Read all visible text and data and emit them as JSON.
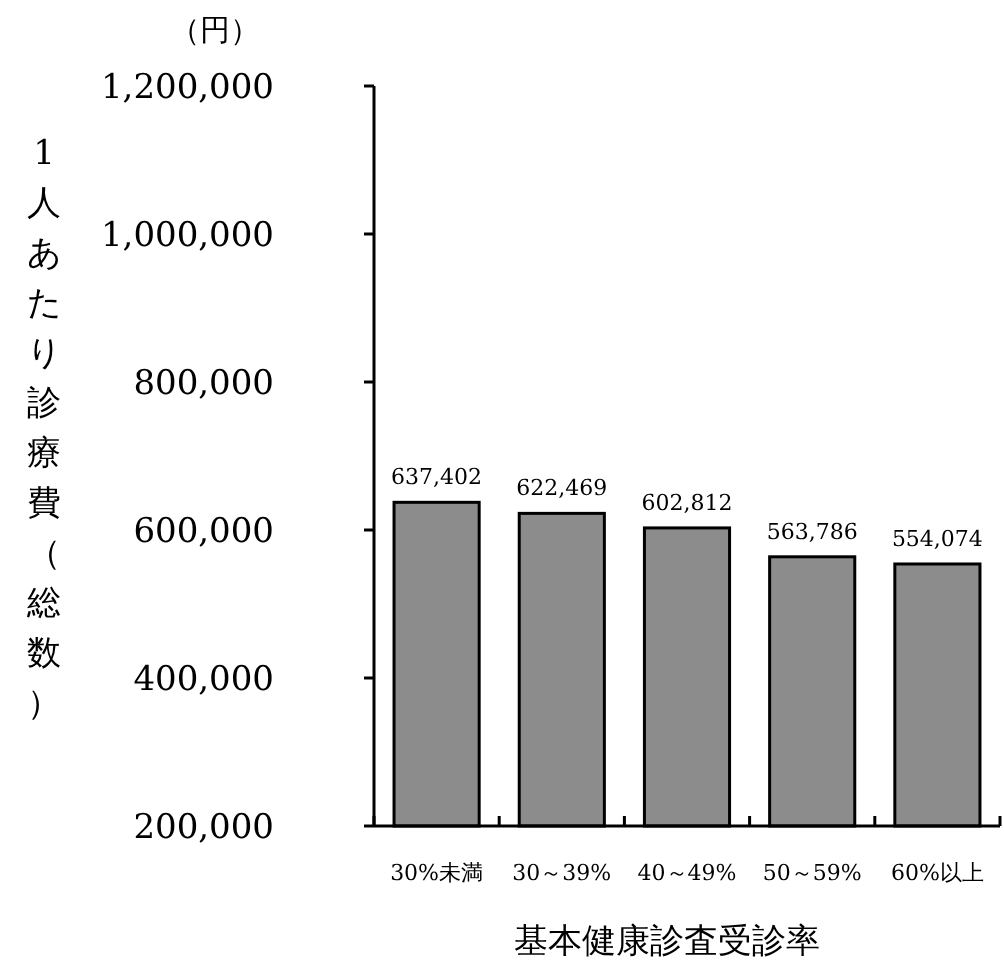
{
  "chart_data": {
    "type": "bar",
    "xlabel": "基本健康診査受診率",
    "ylabel": "1人あたり診療費（総数）",
    "annotations": [
      "（円）"
    ],
    "categories": [
      "30%未満",
      "30～39%",
      "40～49%",
      "50～59%",
      "60%以上"
    ],
    "values": [
      637402,
      622469,
      602812,
      563786,
      554074
    ],
    "value_labels": [
      "637,402",
      "622,469",
      "602,812",
      "563,786",
      "554,074"
    ],
    "color": "#8c8c8c",
    "ylim": [
      200000,
      1200000
    ],
    "yticks": [
      {
        "value": 200000,
        "label": "200,000"
      },
      {
        "value": 400000,
        "label": "400,000"
      },
      {
        "value": 600000,
        "label": "600,000"
      },
      {
        "value": 800000,
        "label": "800,000"
      },
      {
        "value": 1000000,
        "label": "1,000,000"
      },
      {
        "value": 1200000,
        "label": "1,200,000"
      }
    ],
    "grid": false
  }
}
